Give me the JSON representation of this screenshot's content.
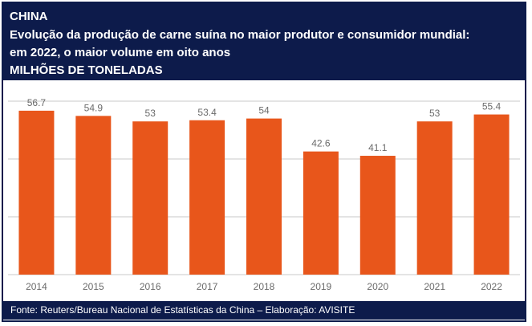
{
  "header": {
    "country": "CHINA",
    "title_line1": "Evolução da produção de carne suína no maior produtor e consumidor mundial:",
    "title_line2": "em 2022, o maior volume em oito anos",
    "unit": "MILHÕES DE TONELADAS"
  },
  "footer": {
    "source": "Fonte: Reuters/Bureau Nacional de Estatísticas da China – Elaboração: AVISITE"
  },
  "colors": {
    "header_bg": "#0d1b4b",
    "bar": "#e8561b",
    "grid": "#c9c9c9",
    "label": "#6b6b6b"
  },
  "chart_data": {
    "type": "bar",
    "categories": [
      "2014",
      "2015",
      "2016",
      "2017",
      "2018",
      "2019",
      "2020",
      "2021",
      "2022"
    ],
    "values": [
      56.7,
      54.9,
      53,
      53.4,
      54,
      42.6,
      41.1,
      53,
      55.4
    ],
    "value_labels": [
      "56.7",
      "54.9",
      "53",
      "53.4",
      "54",
      "42.6",
      "41.1",
      "53",
      "55.4"
    ],
    "title": "",
    "xlabel": "",
    "ylabel": "",
    "ylim": [
      0,
      60
    ],
    "grid": true,
    "legend": "none"
  }
}
